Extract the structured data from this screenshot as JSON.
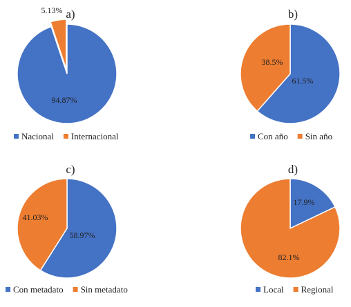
{
  "chart_data": [
    {
      "type": "pie",
      "title": "a)",
      "categories": [
        "Nacional",
        "Internacional"
      ],
      "values": [
        94.87,
        5.13
      ],
      "labels": [
        "94.87%",
        "5.13%"
      ],
      "colors": [
        "#4472C4",
        "#ED7D31"
      ],
      "legend_position": "bottom",
      "exploded": true
    },
    {
      "type": "pie",
      "title": "b)",
      "categories": [
        "Con año",
        "Sin año"
      ],
      "values": [
        61.5,
        38.5
      ],
      "labels": [
        "61.5%",
        "38.5%"
      ],
      "colors": [
        "#4472C4",
        "#ED7D31"
      ],
      "legend_position": "bottom"
    },
    {
      "type": "pie",
      "title": "c)",
      "categories": [
        "Con metadato",
        "Sin metadato"
      ],
      "values": [
        58.97,
        41.03
      ],
      "labels": [
        "58.97%",
        "41.03%"
      ],
      "colors": [
        "#4472C4",
        "#ED7D31"
      ],
      "legend_position": "bottom"
    },
    {
      "type": "pie",
      "title": "d)",
      "categories": [
        "Local",
        "Regional"
      ],
      "values": [
        17.9,
        82.1
      ],
      "labels": [
        "17.9%",
        "82.1%"
      ],
      "colors": [
        "#4472C4",
        "#ED7D31"
      ],
      "legend_position": "bottom"
    }
  ]
}
